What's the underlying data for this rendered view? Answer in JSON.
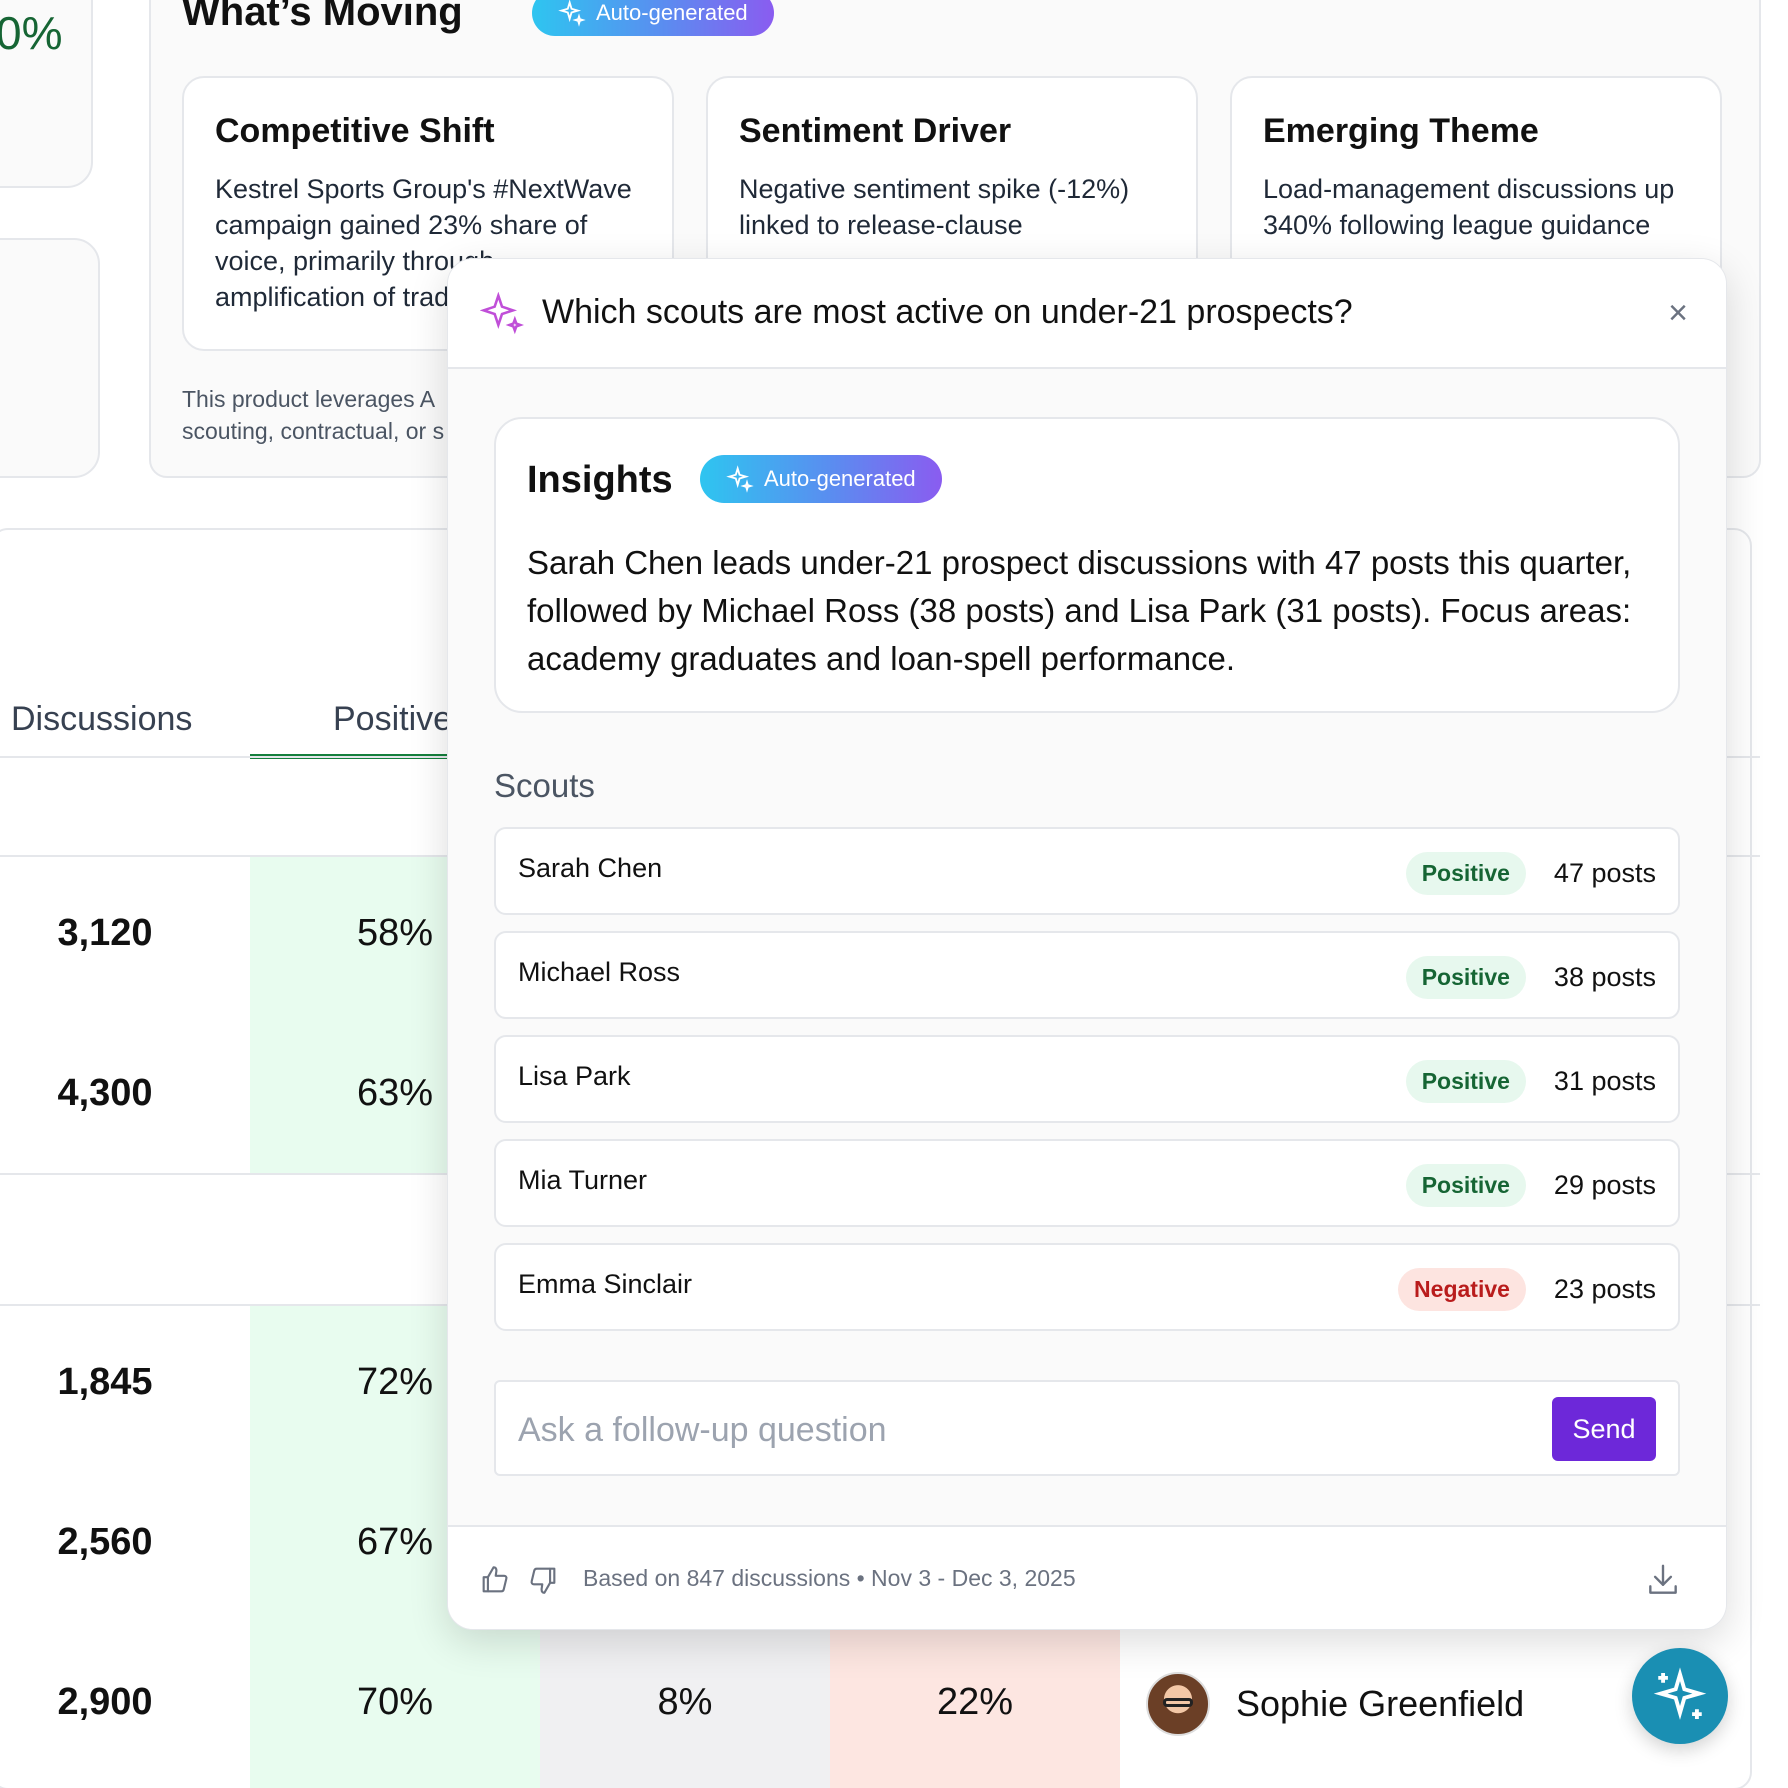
{
  "left_cards": {
    "metric_partial": "0%"
  },
  "whats_moving": {
    "title": "What’s Moving",
    "badge": "Auto-generated",
    "cards": [
      {
        "title": "Competitive Shift",
        "text": "Kestrel Sports Group's #NextWave campaign gained 23% share of voice, primarily through amplification of trad"
      },
      {
        "title": "Sentiment Driver",
        "text": "Negative sentiment spike (-12%) linked to release-clause"
      },
      {
        "title": "Emerging Theme",
        "text": "Load-management discussions up 340% following league guidance"
      }
    ],
    "disclaimer_line1": "This product leverages A",
    "disclaimer_line2": "scouting, contractual, or s"
  },
  "table": {
    "headers": {
      "discussions": "Discussions",
      "positive": "Positive"
    },
    "rows": [
      {
        "discussions": "3,120",
        "positive": "58%"
      },
      {
        "discussions": "4,300",
        "positive": "63%"
      },
      {
        "discussions": "1,845",
        "positive": "72%"
      },
      {
        "discussions": "2,560",
        "positive": "67%"
      },
      {
        "discussions": "2,900",
        "positive": "70%",
        "neutral": "8%",
        "negative": "22%",
        "person": "Sophie Greenfield"
      }
    ]
  },
  "ai_panel": {
    "question": "Which scouts are most active on under-21 prospects?",
    "close_symbol": "×",
    "insights_title": "Insights",
    "insights_badge": "Auto-generated",
    "insights_text": "Sarah Chen leads under-21 prospect discussions with 47 posts this quarter, followed by Michael Ross (38 posts) and Lisa Park (31 posts). Focus areas: academy graduates and loan-spell performance.",
    "scouts_label": "Scouts",
    "scouts": [
      {
        "name": "Sarah Chen",
        "sentiment": "Positive",
        "posts": "47 posts"
      },
      {
        "name": "Michael Ross",
        "sentiment": "Positive",
        "posts": "38 posts"
      },
      {
        "name": "Lisa Park",
        "sentiment": "Positive",
        "posts": "31 posts"
      },
      {
        "name": "Mia Turner",
        "sentiment": "Positive",
        "posts": "29 posts"
      },
      {
        "name": "Emma Sinclair",
        "sentiment": "Negative",
        "posts": "23 posts"
      }
    ],
    "followup_placeholder": "Ask a follow-up question",
    "send_label": "Send",
    "footer_text": "Based on 847 discussions • Nov 3 - Dec 3, 2025",
    "icons": [
      "sparkle-icon",
      "close-icon",
      "thumbs-up-icon",
      "thumbs-down-icon",
      "download-icon"
    ]
  },
  "colors": {
    "accent_purple": "#6d28d9",
    "positive_green": "#166534",
    "negative_red": "#b91c1c",
    "fab_blue": "#1a8fb3"
  }
}
